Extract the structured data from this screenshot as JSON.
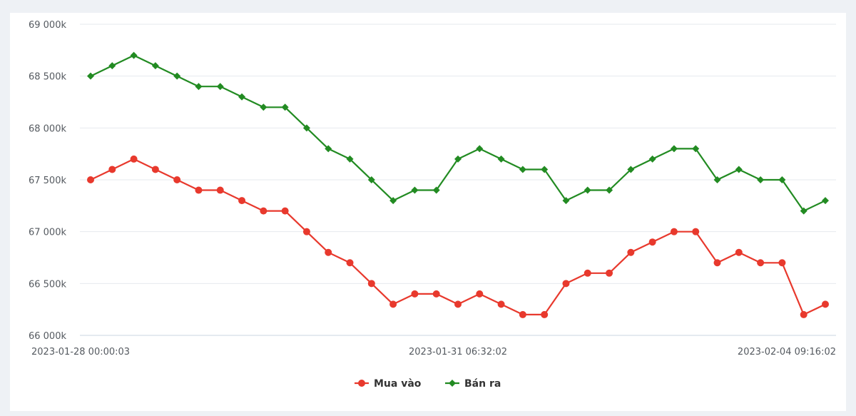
{
  "chart_data": {
    "type": "line",
    "title": "",
    "xlabel": "",
    "ylabel": "",
    "ylim": [
      66000,
      69000
    ],
    "yticks": [
      {
        "value": 66000,
        "label": "66 000k"
      },
      {
        "value": 66500,
        "label": "66 500k"
      },
      {
        "value": 67000,
        "label": "67 000k"
      },
      {
        "value": 67500,
        "label": "67 500k"
      },
      {
        "value": 68000,
        "label": "68 000k"
      },
      {
        "value": 68500,
        "label": "68 500k"
      },
      {
        "value": 69000,
        "label": "69 000k"
      }
    ],
    "xticks": [
      {
        "index": 0,
        "label": "2023-01-28 00:00:03"
      },
      {
        "index": 15,
        "label": "2023-01-31 06:32:02"
      },
      {
        "index": 29,
        "label": "2023-02-04 09:16:02"
      }
    ],
    "grid": true,
    "legend_position": "bottom",
    "series": [
      {
        "name": "Mua vào",
        "color": "#e8392d",
        "marker": "circle",
        "values": [
          67500,
          67600,
          67700,
          67600,
          67500,
          67400,
          67400,
          67300,
          67200,
          67200,
          67000,
          66800,
          66700,
          66500,
          66300,
          66400,
          66400,
          66300,
          66400,
          66300,
          66200,
          66200,
          66500,
          66600,
          66600,
          66800,
          66900,
          67000,
          67000,
          66700,
          66800,
          66700,
          66700,
          66200,
          66300
        ]
      },
      {
        "name": "Bán ra",
        "color": "#228b22",
        "marker": "diamond",
        "values": [
          68500,
          68600,
          68700,
          68600,
          68500,
          68400,
          68400,
          68300,
          68200,
          68200,
          68000,
          67800,
          67700,
          67500,
          67300,
          67400,
          67400,
          67700,
          67800,
          67700,
          67600,
          67600,
          67300,
          67400,
          67400,
          67600,
          67700,
          67800,
          67800,
          67500,
          67600,
          67500,
          67500,
          67200,
          67300
        ]
      }
    ]
  }
}
